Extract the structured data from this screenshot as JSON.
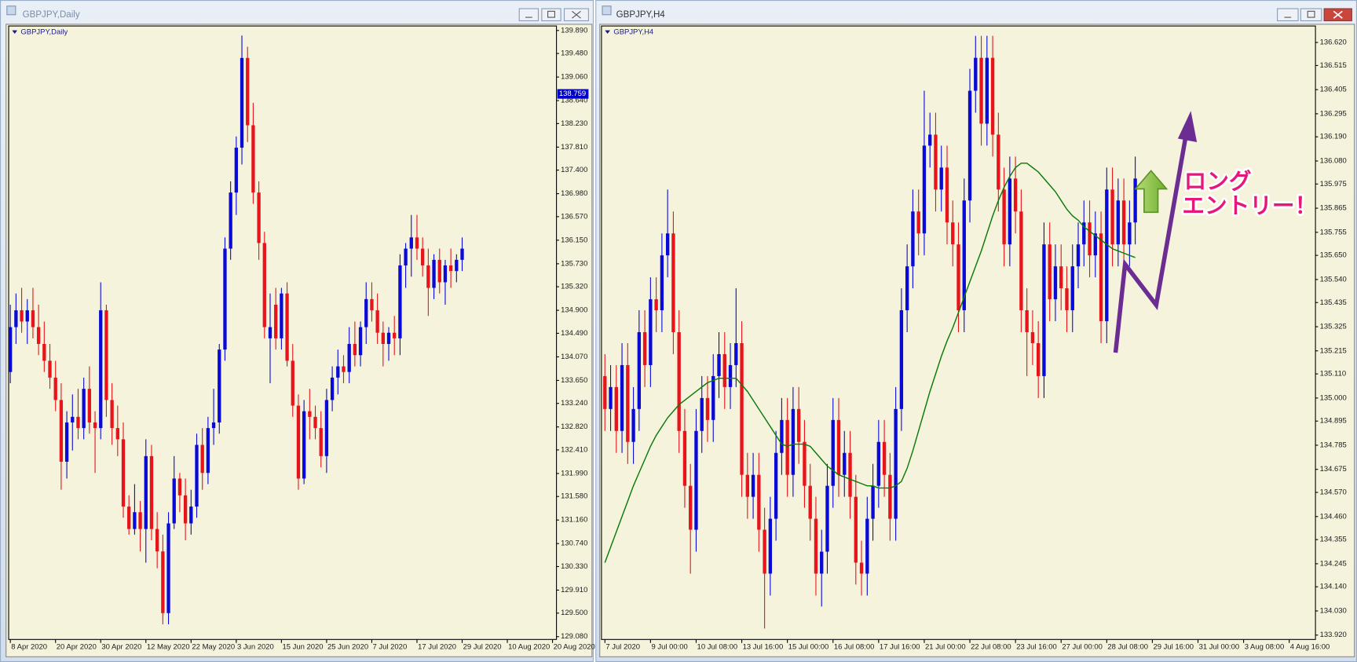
{
  "chart_data": [
    {
      "type": "candlestick",
      "title": "GBPJPY,Daily",
      "up_color": "#0a0ad6",
      "down_color": "#e8141c",
      "current_price": 138.759,
      "xlim": [
        -0.3,
        96.7
      ],
      "xticks": [
        {
          "value": 0,
          "label": "8 Apr 2020"
        },
        {
          "value": 8,
          "label": "20 Apr 2020"
        },
        {
          "value": 16,
          "label": "30 Apr 2020"
        },
        {
          "value": 24,
          "label": "12 May 2020"
        },
        {
          "value": 32,
          "label": "22 May 2020"
        },
        {
          "value": 40,
          "label": "3 Jun 2020"
        },
        {
          "value": 48,
          "label": "15 Jun 2020"
        },
        {
          "value": 56,
          "label": "25 Jun 2020"
        },
        {
          "value": 64,
          "label": "7 Jul 2020"
        },
        {
          "value": 72,
          "label": "17 Jul 2020"
        },
        {
          "value": 80,
          "label": "29 Jul 2020"
        },
        {
          "value": 88,
          "label": "10 Aug 2020"
        },
        {
          "value": 96,
          "label": "20 Aug 2020"
        }
      ],
      "ylim": [
        129.03,
        139.97
      ],
      "yticks": [
        {
          "value": 139.89,
          "label": "139.890"
        },
        {
          "value": 139.48,
          "label": "139.480"
        },
        {
          "value": 139.06,
          "label": "139.060"
        },
        {
          "value": 138.64,
          "label": "138.640"
        },
        {
          "value": 138.23,
          "label": "138.230"
        },
        {
          "value": 137.81,
          "label": "137.810"
        },
        {
          "value": 137.4,
          "label": "137.400"
        },
        {
          "value": 136.98,
          "label": "136.980"
        },
        {
          "value": 136.57,
          "label": "136.570"
        },
        {
          "value": 136.15,
          "label": "136.150"
        },
        {
          "value": 135.73,
          "label": "135.730"
        },
        {
          "value": 135.32,
          "label": "135.320"
        },
        {
          "value": 134.9,
          "label": "134.900"
        },
        {
          "value": 134.49,
          "label": "134.490"
        },
        {
          "value": 134.07,
          "label": "134.070"
        },
        {
          "value": 133.65,
          "label": "133.650"
        },
        {
          "value": 133.24,
          "label": "133.240"
        },
        {
          "value": 132.82,
          "label": "132.820"
        },
        {
          "value": 132.41,
          "label": "132.410"
        },
        {
          "value": 131.99,
          "label": "131.990"
        },
        {
          "value": 131.58,
          "label": "131.580"
        },
        {
          "value": 131.16,
          "label": "131.160"
        },
        {
          "value": 130.74,
          "label": "130.740"
        },
        {
          "value": 130.33,
          "label": "130.330"
        },
        {
          "value": 129.91,
          "label": "129.910"
        },
        {
          "value": 129.5,
          "label": "129.500"
        },
        {
          "value": 129.08,
          "label": "129.080"
        }
      ],
      "open": [
        133.8,
        134.6,
        134.9,
        134.7,
        134.9,
        134.6,
        134.3,
        134.0,
        133.7,
        133.3,
        132.2,
        132.9,
        133.0,
        132.8,
        133.5,
        132.9,
        132.8,
        134.9,
        133.3,
        132.8,
        132.6,
        131.4,
        131.0,
        131.3,
        131.0,
        132.3,
        131.0,
        130.6,
        129.5,
        131.1,
        131.9,
        131.6,
        131.1,
        131.4,
        132.5,
        132.0,
        132.8,
        132.9,
        134.2,
        136.0,
        137.0,
        137.8,
        139.4,
        138.2,
        137.0,
        136.1,
        134.4,
        135.0,
        134.4,
        135.2,
        134.0,
        133.2,
        131.9,
        133.1,
        133.0,
        132.8,
        132.3,
        133.3,
        133.7,
        133.9,
        133.8,
        134.3,
        134.1,
        134.6,
        135.1,
        134.9,
        134.5,
        134.3,
        134.5,
        134.4,
        135.7,
        136.0,
        136.2,
        136.0,
        135.7,
        135.3,
        135.8,
        135.4,
        135.7,
        135.6,
        135.8
      ],
      "high": [
        135.0,
        135.2,
        135.3,
        135.1,
        135.3,
        135.0,
        134.7,
        134.3,
        134.0,
        133.6,
        133.1,
        133.4,
        133.5,
        133.7,
        133.9,
        133.1,
        135.4,
        135.0,
        133.6,
        133.2,
        132.9,
        131.6,
        131.8,
        131.5,
        132.6,
        132.5,
        131.3,
        130.9,
        131.3,
        132.3,
        132.0,
        131.9,
        131.7,
        132.7,
        132.8,
        133.0,
        133.5,
        134.3,
        136.2,
        137.2,
        138.0,
        139.8,
        139.6,
        138.6,
        137.2,
        136.3,
        135.2,
        135.3,
        135.3,
        135.4,
        134.3,
        133.4,
        133.3,
        133.5,
        133.2,
        133.1,
        133.5,
        133.9,
        134.2,
        134.1,
        134.6,
        134.7,
        134.7,
        135.4,
        135.4,
        135.2,
        134.7,
        134.6,
        134.8,
        135.9,
        136.1,
        136.6,
        136.6,
        136.2,
        136.0,
        135.9,
        136.0,
        135.8,
        136.0,
        135.9,
        136.2
      ],
      "low": [
        133.6,
        134.3,
        134.5,
        134.3,
        134.4,
        134.1,
        133.8,
        133.5,
        133.1,
        131.7,
        131.9,
        132.4,
        132.6,
        132.6,
        132.7,
        132.0,
        132.6,
        133.0,
        132.5,
        132.3,
        131.2,
        130.9,
        130.9,
        130.6,
        130.4,
        130.8,
        130.3,
        129.3,
        129.3,
        131.0,
        131.3,
        130.8,
        130.9,
        131.2,
        131.7,
        131.8,
        132.5,
        132.7,
        134.0,
        135.8,
        136.6,
        137.5,
        137.9,
        136.8,
        135.8,
        134.4,
        133.6,
        134.2,
        134.2,
        133.9,
        133.0,
        131.7,
        131.8,
        132.6,
        132.6,
        132.1,
        132.0,
        133.1,
        133.4,
        133.6,
        133.6,
        133.9,
        133.9,
        134.3,
        134.7,
        134.3,
        133.9,
        134.0,
        134.1,
        134.1,
        135.3,
        135.5,
        135.8,
        135.5,
        134.8,
        135.1,
        135.2,
        135.0,
        135.3,
        135.4,
        135.6
      ],
      "close": [
        134.6,
        134.9,
        134.7,
        134.9,
        134.6,
        134.3,
        134.0,
        133.7,
        133.3,
        132.2,
        132.9,
        133.0,
        132.8,
        133.5,
        132.9,
        132.8,
        134.9,
        133.3,
        132.8,
        132.6,
        131.4,
        131.0,
        131.3,
        131.0,
        132.3,
        131.0,
        130.6,
        129.5,
        131.1,
        131.9,
        131.6,
        131.1,
        131.4,
        132.5,
        132.0,
        132.8,
        132.9,
        134.2,
        136.0,
        137.0,
        137.8,
        139.4,
        138.2,
        137.0,
        136.1,
        134.6,
        134.6,
        134.4,
        135.2,
        134.0,
        133.2,
        131.9,
        133.1,
        133.0,
        132.8,
        132.3,
        133.3,
        133.7,
        133.9,
        133.8,
        134.3,
        134.1,
        134.6,
        135.1,
        134.9,
        134.5,
        134.3,
        134.5,
        134.4,
        135.7,
        136.0,
        136.2,
        136.0,
        135.7,
        135.3,
        135.8,
        135.4,
        135.7,
        135.6,
        135.8,
        136.0
      ]
    },
    {
      "type": "candlestick",
      "title": "GBPJPY,H4",
      "up_color": "#0a0ad6",
      "down_color": "#e8141c",
      "annotation": [
        "ロング",
        "エントリー！"
      ],
      "xlim": [
        -0.6,
        124.6
      ],
      "xticks": [
        {
          "value": 0,
          "label": "7 Jul 2020"
        },
        {
          "value": 8,
          "label": "9 Jul 00:00"
        },
        {
          "value": 16,
          "label": "10 Jul 08:00"
        },
        {
          "value": 24,
          "label": "13 Jul 16:00"
        },
        {
          "value": 32,
          "label": "15 Jul 00:00"
        },
        {
          "value": 40,
          "label": "16 Jul 08:00"
        },
        {
          "value": 48,
          "label": "17 Jul 16:00"
        },
        {
          "value": 56,
          "label": "21 Jul 00:00"
        },
        {
          "value": 64,
          "label": "22 Jul 08:00"
        },
        {
          "value": 72,
          "label": "23 Jul 16:00"
        },
        {
          "value": 80,
          "label": "27 Jul 00:00"
        },
        {
          "value": 88,
          "label": "28 Jul 08:00"
        },
        {
          "value": 96,
          "label": "29 Jul 16:00"
        },
        {
          "value": 104,
          "label": "31 Jul 00:00"
        },
        {
          "value": 112,
          "label": "3 Aug 08:00"
        },
        {
          "value": 120,
          "label": "4 Aug 16:00"
        }
      ],
      "ylim": [
        133.9,
        136.695
      ],
      "yticks": [
        {
          "value": 136.62,
          "label": "136.620"
        },
        {
          "value": 136.515,
          "label": "136.515"
        },
        {
          "value": 136.405,
          "label": "136.405"
        },
        {
          "value": 136.295,
          "label": "136.295"
        },
        {
          "value": 136.19,
          "label": "136.190"
        },
        {
          "value": 136.08,
          "label": "136.080"
        },
        {
          "value": 135.975,
          "label": "135.975"
        },
        {
          "value": 135.865,
          "label": "135.865"
        },
        {
          "value": 135.755,
          "label": "135.755"
        },
        {
          "value": 135.65,
          "label": "135.650"
        },
        {
          "value": 135.54,
          "label": "135.540"
        },
        {
          "value": 135.435,
          "label": "135.435"
        },
        {
          "value": 135.325,
          "label": "135.325"
        },
        {
          "value": 135.215,
          "label": "135.215"
        },
        {
          "value": 135.11,
          "label": "135.110"
        },
        {
          "value": 135.0,
          "label": "135.000"
        },
        {
          "value": 134.895,
          "label": "134.895"
        },
        {
          "value": 134.785,
          "label": "134.785"
        },
        {
          "value": 134.675,
          "label": "134.675"
        },
        {
          "value": 134.57,
          "label": "134.570"
        },
        {
          "value": 134.46,
          "label": "134.460"
        },
        {
          "value": 134.355,
          "label": "134.355"
        },
        {
          "value": 134.245,
          "label": "134.245"
        },
        {
          "value": 134.14,
          "label": "134.140"
        },
        {
          "value": 134.03,
          "label": "134.030"
        },
        {
          "value": 133.92,
          "label": "133.920"
        }
      ],
      "open": [
        135.1,
        134.95,
        135.05,
        134.85,
        135.15,
        134.8,
        134.95,
        135.3,
        135.15,
        135.45,
        135.4,
        135.65,
        135.75,
        135.3,
        134.85,
        134.6,
        134.4,
        134.85,
        135.0,
        134.9,
        135.1,
        135.2,
        135.05,
        135.15,
        135.25,
        134.65,
        134.55,
        134.65,
        134.4,
        134.2,
        134.45,
        134.75,
        134.9,
        134.65,
        134.95,
        134.8,
        134.6,
        134.45,
        134.2,
        134.3,
        134.6,
        134.9,
        134.65,
        134.75,
        134.55,
        134.25,
        134.2,
        134.45,
        134.6,
        134.8,
        134.65,
        134.45,
        134.95,
        135.4,
        135.6,
        135.85,
        135.75,
        136.15,
        136.2,
        135.95,
        136.05,
        135.8,
        135.7,
        135.4,
        135.9,
        136.4,
        136.55,
        136.25,
        136.55,
        136.2,
        135.95,
        135.7,
        136.0,
        135.85,
        135.4,
        135.3,
        135.25,
        135.1,
        135.7,
        135.45,
        135.6,
        135.5,
        135.4,
        135.6,
        135.7,
        135.8,
        135.65,
        135.75,
        135.35,
        135.95,
        135.7,
        135.9,
        135.7,
        135.8
      ],
      "high": [
        135.2,
        135.15,
        135.15,
        135.25,
        135.25,
        135.05,
        135.4,
        135.4,
        135.55,
        135.55,
        135.75,
        135.95,
        135.85,
        135.4,
        134.95,
        134.7,
        134.95,
        135.1,
        135.1,
        135.2,
        135.3,
        135.3,
        135.25,
        135.5,
        135.35,
        134.75,
        134.75,
        134.75,
        134.5,
        134.55,
        134.85,
        135.0,
        135.0,
        135.05,
        135.05,
        134.9,
        134.7,
        134.55,
        134.4,
        134.7,
        135.0,
        135.0,
        134.85,
        134.85,
        134.65,
        134.35,
        134.55,
        134.7,
        134.9,
        134.9,
        134.75,
        135.05,
        135.5,
        135.7,
        135.95,
        135.95,
        136.4,
        136.3,
        136.3,
        136.15,
        136.15,
        135.9,
        135.8,
        136.0,
        136.5,
        136.65,
        136.65,
        136.65,
        136.65,
        136.3,
        136.05,
        136.1,
        136.1,
        135.95,
        135.5,
        135.4,
        135.35,
        135.8,
        135.8,
        135.7,
        135.7,
        135.6,
        135.7,
        135.8,
        135.9,
        135.9,
        135.85,
        135.85,
        136.05,
        136.05,
        136.0,
        136.0,
        135.9,
        136.1
      ],
      "low": [
        134.85,
        134.85,
        134.75,
        134.75,
        134.7,
        134.7,
        134.85,
        135.05,
        135.05,
        135.3,
        135.3,
        135.55,
        135.2,
        134.75,
        134.5,
        134.2,
        134.3,
        134.75,
        134.8,
        134.8,
        135.0,
        134.95,
        134.95,
        135.05,
        134.55,
        134.45,
        134.45,
        134.3,
        133.95,
        134.1,
        134.35,
        134.65,
        134.55,
        134.55,
        134.7,
        134.5,
        134.35,
        134.1,
        134.05,
        134.2,
        134.5,
        134.55,
        134.55,
        134.45,
        134.15,
        134.1,
        134.1,
        134.35,
        134.5,
        134.55,
        134.35,
        134.35,
        134.85,
        135.3,
        135.5,
        135.65,
        135.65,
        136.05,
        135.85,
        135.85,
        135.7,
        135.6,
        135.3,
        135.3,
        135.8,
        136.3,
        136.15,
        136.15,
        136.1,
        135.85,
        135.6,
        135.6,
        135.75,
        135.3,
        135.1,
        135.15,
        135.0,
        135.0,
        135.35,
        135.35,
        135.4,
        135.3,
        135.3,
        135.5,
        135.6,
        135.55,
        135.55,
        135.25,
        135.25,
        135.6,
        135.6,
        135.6,
        135.6,
        135.7
      ],
      "close": [
        134.95,
        135.05,
        134.85,
        135.15,
        134.8,
        134.95,
        135.3,
        135.15,
        135.45,
        135.4,
        135.65,
        135.75,
        135.3,
        134.85,
        134.6,
        134.4,
        134.85,
        135.0,
        134.9,
        135.1,
        135.2,
        135.05,
        135.15,
        135.25,
        134.65,
        134.55,
        134.65,
        134.4,
        134.2,
        134.45,
        134.75,
        134.9,
        134.65,
        134.95,
        134.8,
        134.6,
        134.45,
        134.2,
        134.3,
        134.6,
        134.9,
        134.65,
        134.75,
        134.55,
        134.25,
        134.2,
        134.45,
        134.6,
        134.8,
        134.65,
        134.45,
        134.95,
        135.4,
        135.6,
        135.85,
        135.75,
        136.15,
        136.2,
        135.95,
        136.05,
        135.8,
        135.7,
        135.4,
        135.9,
        136.4,
        136.55,
        136.25,
        136.55,
        136.2,
        135.95,
        135.7,
        136.0,
        135.85,
        135.4,
        135.3,
        135.25,
        135.1,
        135.7,
        135.45,
        135.6,
        135.5,
        135.4,
        135.6,
        135.7,
        135.8,
        135.65,
        135.75,
        135.35,
        135.95,
        135.7,
        135.9,
        135.7,
        135.8,
        136.0
      ],
      "moving_average": {
        "color": "#0a7a0a",
        "values": [
          134.25,
          134.32,
          134.39,
          134.46,
          134.53,
          134.6,
          134.66,
          134.72,
          134.78,
          134.83,
          134.87,
          134.91,
          134.94,
          134.97,
          134.99,
          135.01,
          135.03,
          135.05,
          135.07,
          135.08,
          135.09,
          135.09,
          135.09,
          135.09,
          135.06,
          135.03,
          134.99,
          134.95,
          134.91,
          134.87,
          134.83,
          134.79,
          134.78,
          134.79,
          134.79,
          134.79,
          134.78,
          134.75,
          134.72,
          134.69,
          134.67,
          134.65,
          134.64,
          134.63,
          134.62,
          134.61,
          134.6,
          134.6,
          134.59,
          134.59,
          134.59,
          134.6,
          134.62,
          134.68,
          134.76,
          134.85,
          134.94,
          135.03,
          135.11,
          135.19,
          135.26,
          135.32,
          135.39,
          135.46,
          135.53,
          135.6,
          135.67,
          135.75,
          135.83,
          135.9,
          135.96,
          136.01,
          136.05,
          136.07,
          136.07,
          136.05,
          136.03,
          136.0,
          135.97,
          135.94,
          135.9,
          135.86,
          135.83,
          135.81,
          135.78,
          135.76,
          135.74,
          135.72,
          135.7,
          135.68,
          135.67,
          135.66,
          135.65,
          135.64
        ]
      }
    }
  ]
}
